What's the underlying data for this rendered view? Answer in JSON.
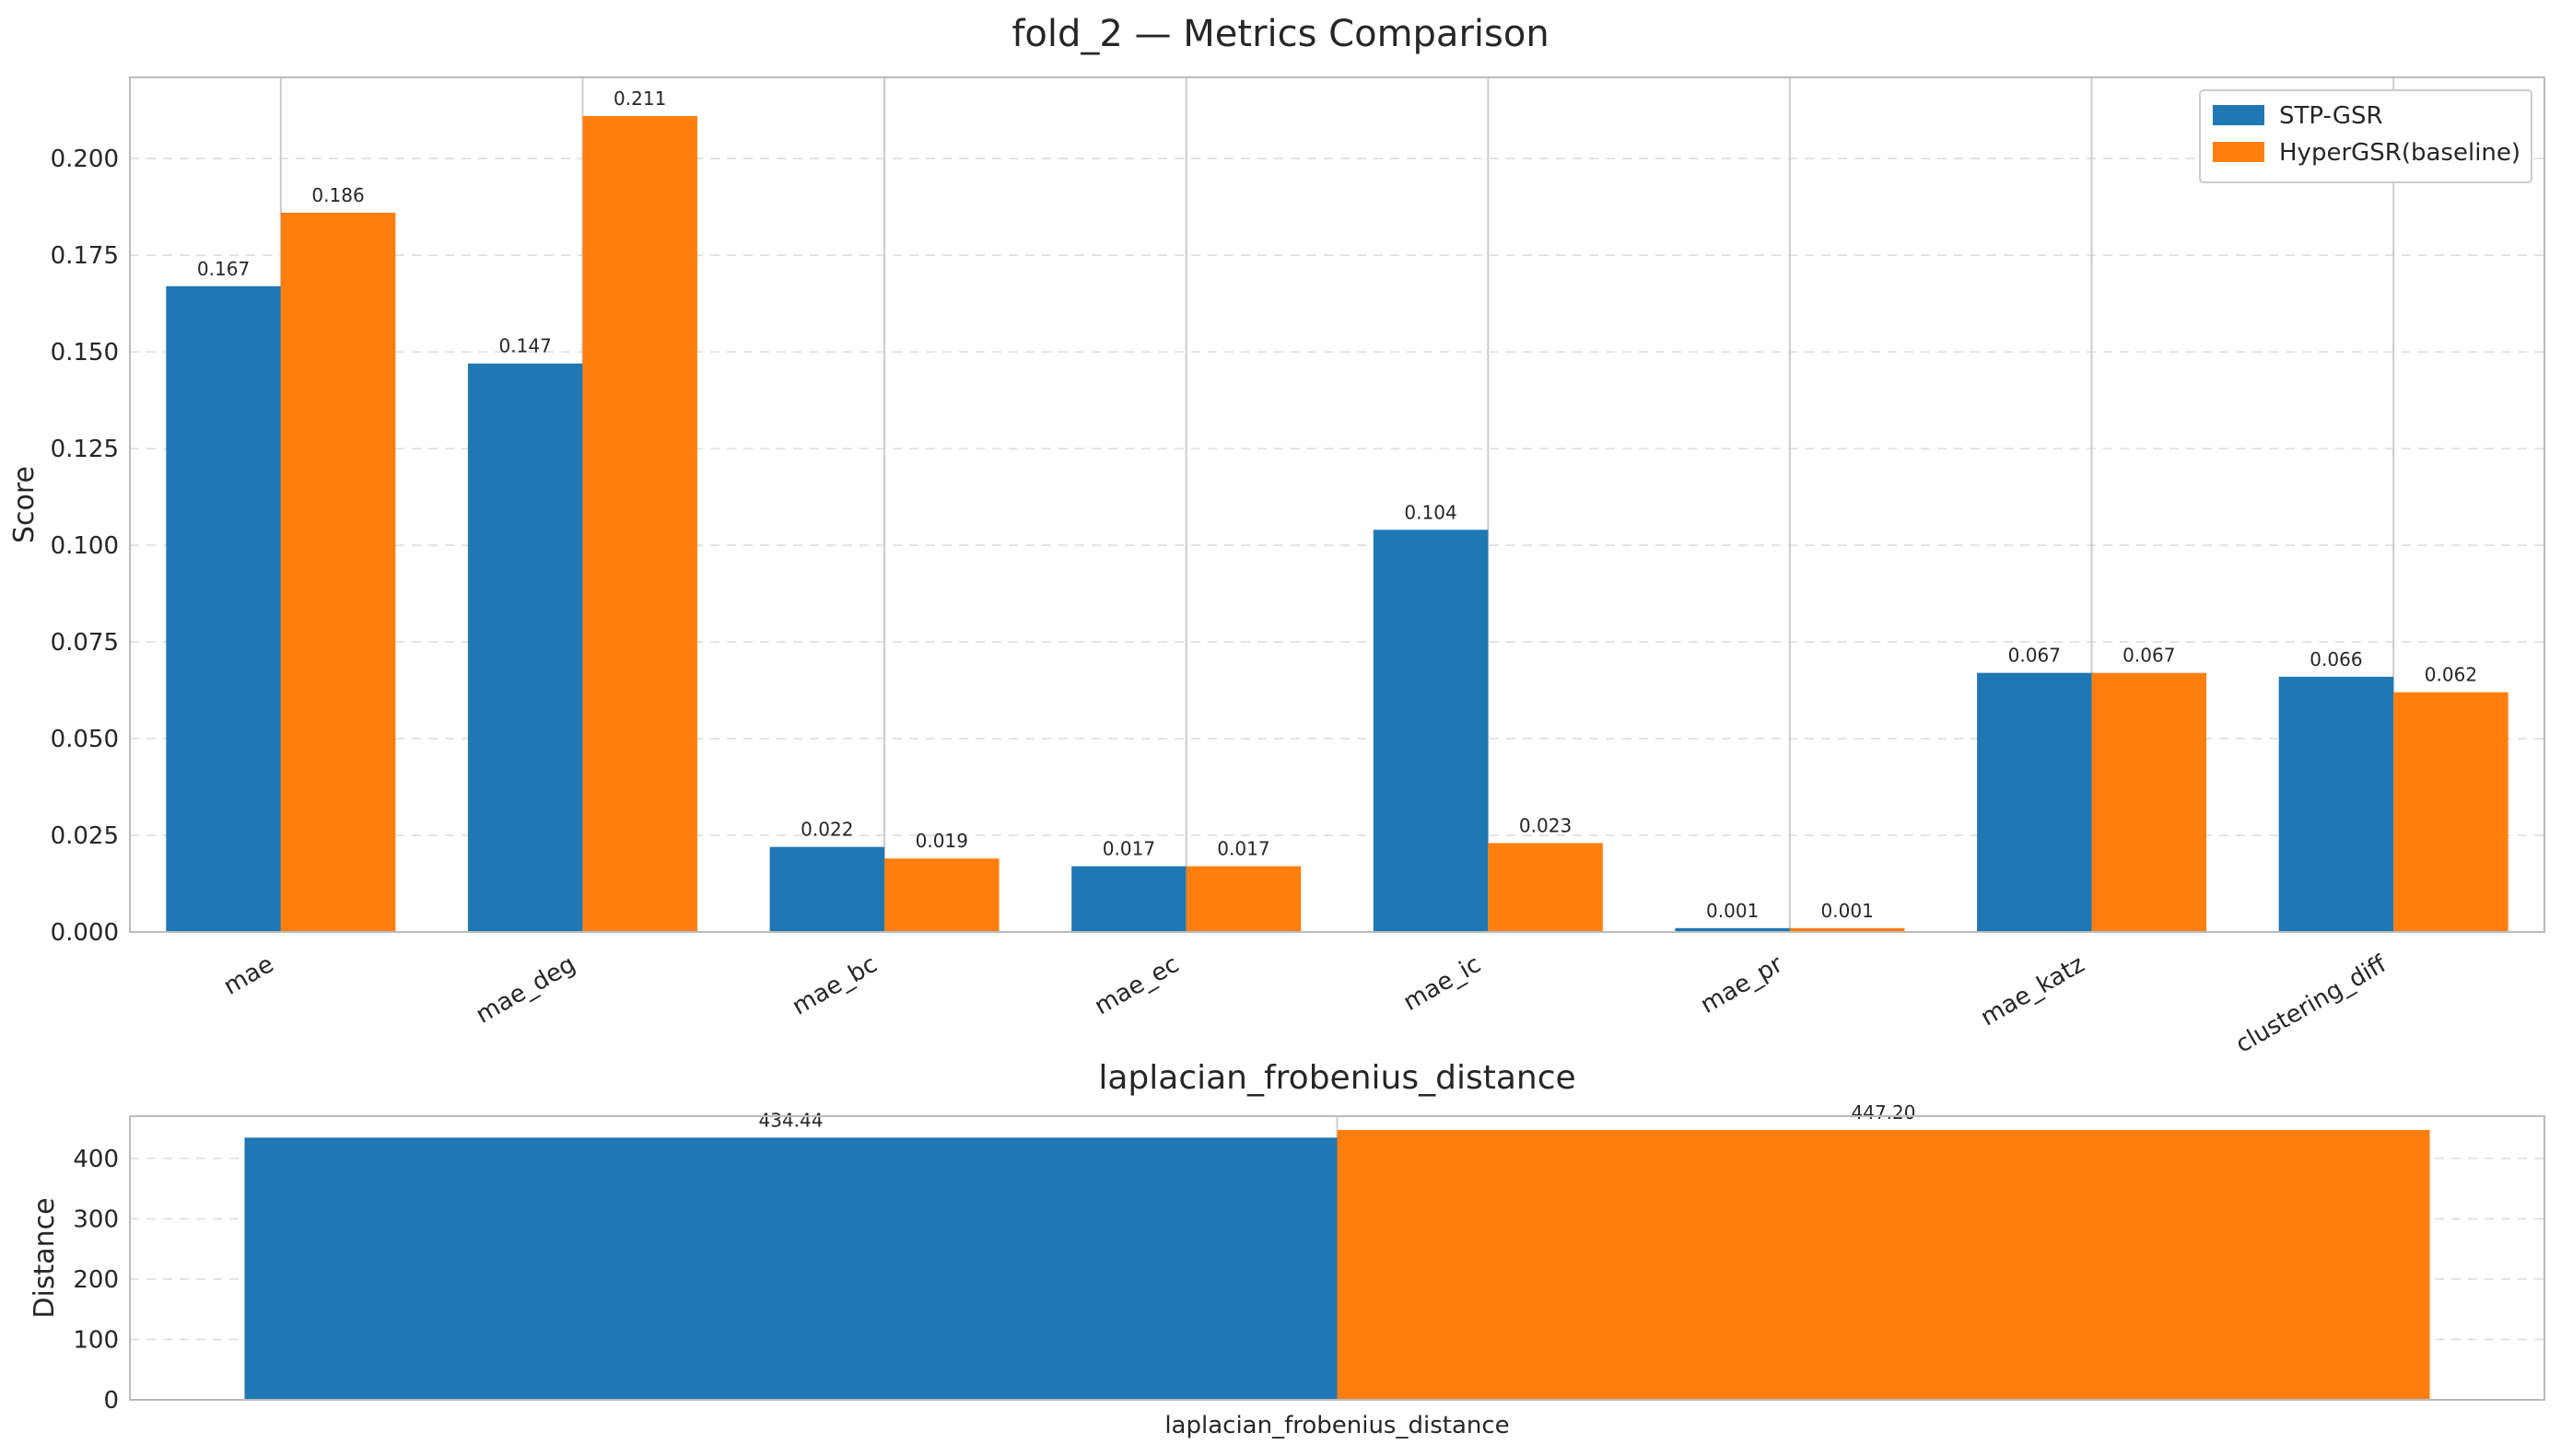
{
  "page_title": "fold_2 — Metrics Comparison",
  "colors": {
    "series_1": "#1f77b4",
    "series_2": "#ff7f0e",
    "grid": "#dddddd",
    "axes": "#bbbbbb",
    "text": "#262626"
  },
  "chart_data": [
    {
      "type": "bar",
      "title": "",
      "xlabel": "",
      "ylabel": "Score",
      "ylim": [
        0,
        0.221
      ],
      "yticks": [
        "0.000",
        "0.025",
        "0.050",
        "0.075",
        "0.100",
        "0.125",
        "0.150",
        "0.175",
        "0.200"
      ],
      "categories": [
        "mae",
        "mae_deg",
        "mae_bc",
        "mae_ec",
        "mae_ic",
        "mae_pr",
        "mae_katz",
        "clustering_diff"
      ],
      "series": [
        {
          "name": "STP-GSR",
          "values": [
            0.167,
            0.147,
            0.022,
            0.017,
            0.104,
            0.001,
            0.067,
            0.066
          ],
          "labels": [
            "0.167",
            "0.147",
            "0.022",
            "0.017",
            "0.104",
            "0.001",
            "0.067",
            "0.066"
          ]
        },
        {
          "name": "HyperGSR(baseline)",
          "values": [
            0.186,
            0.211,
            0.019,
            0.017,
            0.023,
            0.001,
            0.067,
            0.062
          ],
          "labels": [
            "0.186",
            "0.211",
            "0.019",
            "0.017",
            "0.023",
            "0.001",
            "0.067",
            "0.062"
          ]
        }
      ],
      "legend": "top-right",
      "grid": true
    },
    {
      "type": "bar",
      "title": "laplacian_frobenius_distance",
      "xlabel": "",
      "ylabel": "Distance",
      "ylim": [
        0,
        470
      ],
      "yticks": [
        "0",
        "100",
        "200",
        "300",
        "400"
      ],
      "categories": [
        "laplacian_frobenius_distance"
      ],
      "series": [
        {
          "name": "STP-GSR",
          "values": [
            434.44
          ],
          "labels": [
            "434.44"
          ]
        },
        {
          "name": "HyperGSR(baseline)",
          "values": [
            447.2
          ],
          "labels": [
            "447.20"
          ]
        }
      ],
      "grid": true
    }
  ]
}
